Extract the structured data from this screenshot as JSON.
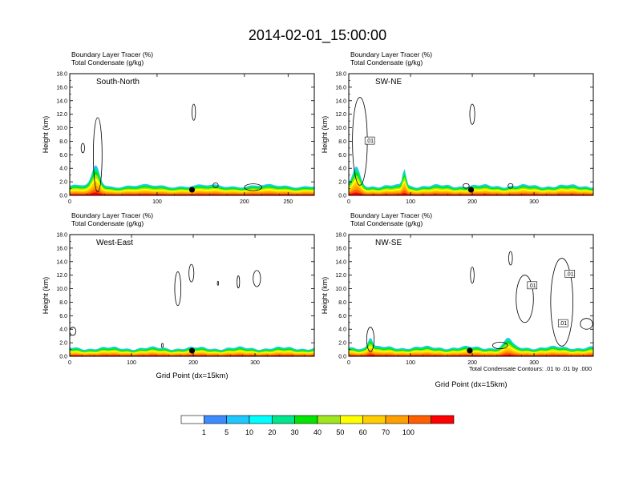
{
  "chart_data": {
    "type": "contour",
    "title": "2014-02-01_15:00:00",
    "panels": [
      {
        "label": "South-North",
        "var1": "Boundary Layer Tracer",
        "var1_units": "(%)",
        "var2": "Total Condensate",
        "var2_units": "(g/kg)",
        "ylabel": "Height (km)",
        "xlabel": "",
        "xlim": [
          0,
          280
        ],
        "ylim": [
          0,
          18
        ],
        "xticks": [
          0,
          100,
          200,
          250
        ],
        "yticks": [
          "0.0",
          "2.0",
          "4.0",
          "6.0",
          "8.0",
          "10.0",
          "12.0",
          "14.0",
          "16.0",
          "18.0"
        ],
        "site_x": 140,
        "contour_labels": [],
        "pbl_top_km": 1.4,
        "peaks": [
          {
            "x": 30,
            "h": 3.0,
            "w": 6
          }
        ],
        "clouds": [
          {
            "x": 15,
            "y": 7.0,
            "rx": 2,
            "ry": 0.7
          },
          {
            "x": 32,
            "y": 6.0,
            "rx": 5,
            "ry": 5.5
          },
          {
            "x": 142,
            "y": 12.3,
            "rx": 2,
            "ry": 1.2
          },
          {
            "x": 167,
            "y": 1.5,
            "rx": 3,
            "ry": 0.35
          },
          {
            "x": 210,
            "y": 1.2,
            "rx": 10,
            "ry": 0.5
          }
        ]
      },
      {
        "label": "SW-NE",
        "var1": "Boundary Layer Tracer",
        "var1_units": "(%)",
        "var2": "Total Condensate",
        "var2_units": "(g/kg)",
        "ylabel": "Height (km)",
        "xlabel": "",
        "xlim": [
          0,
          396
        ],
        "ylim": [
          0,
          18
        ],
        "xticks": [
          0,
          100,
          200,
          300
        ],
        "yticks": [
          "0.0",
          "2.0",
          "4.0",
          "6.0",
          "8.0",
          "10.0",
          "12.0",
          "14.0",
          "16.0",
          "18.0"
        ],
        "site_x": 198,
        "contour_labels": [
          {
            "x": 34,
            "y": 8.1,
            "text": ".01"
          }
        ],
        "pbl_top_km": 1.4,
        "peaks": [
          {
            "x": 12,
            "h": 2.8,
            "w": 8
          },
          {
            "x": 90,
            "h": 2.6,
            "w": 4
          }
        ],
        "clouds": [
          {
            "x": 18,
            "y": 8.0,
            "rx": 12,
            "ry": 6.5
          },
          {
            "x": 200,
            "y": 12.0,
            "rx": 4,
            "ry": 1.5
          },
          {
            "x": 190,
            "y": 1.4,
            "rx": 5,
            "ry": 0.35
          },
          {
            "x": 262,
            "y": 1.4,
            "rx": 4,
            "ry": 0.35
          }
        ]
      },
      {
        "label": "West-East",
        "var1": "Boundary Layer Tracer",
        "var1_units": "(%)",
        "var2": "Total Condensate",
        "var2_units": "(g/kg)",
        "ylabel": "Height (km)",
        "xlabel": "Grid Point (dx=15km)",
        "xlim": [
          0,
          396
        ],
        "ylim": [
          0,
          18
        ],
        "xticks": [
          0,
          100,
          200,
          300
        ],
        "yticks": [
          "0.0",
          "2.0",
          "4.0",
          "6.0",
          "8.0",
          "10.0",
          "12.0",
          "14.0",
          "16.0",
          "18.0"
        ],
        "site_x": 198,
        "contour_labels": [],
        "pbl_top_km": 1.2,
        "peaks": [],
        "clouds": [
          {
            "x": 5,
            "y": 3.7,
            "rx": 5,
            "ry": 0.6
          },
          {
            "x": 175,
            "y": 10.0,
            "rx": 5,
            "ry": 2.5
          },
          {
            "x": 197,
            "y": 12.3,
            "rx": 4,
            "ry": 1.3
          },
          {
            "x": 240,
            "y": 10.8,
            "rx": 1,
            "ry": 0.3
          },
          {
            "x": 273,
            "y": 11.0,
            "rx": 2,
            "ry": 0.9
          },
          {
            "x": 303,
            "y": 11.5,
            "rx": 6,
            "ry": 1.2
          },
          {
            "x": 150,
            "y": 1.6,
            "rx": 1.5,
            "ry": 0.3
          }
        ]
      },
      {
        "label": "NW-SE",
        "var1": "Boundary Layer Tracer",
        "var1_units": "(%)",
        "var2": "Total Condensate",
        "var2_units": "(g/kg)",
        "ylabel": "Height (km)",
        "xlabel": "Grid Point (dx=15km)",
        "xlim": [
          0,
          396
        ],
        "ylim": [
          0,
          18
        ],
        "xticks": [
          0,
          100,
          200,
          300
        ],
        "yticks": [
          "0.0",
          "2.0",
          "4.0",
          "6.0",
          "8.0",
          "10.0",
          "12.0",
          "14.0",
          "16.0",
          "18.0"
        ],
        "site_x": 196,
        "contour_labels": [
          {
            "x": 297,
            "y": 10.5,
            "text": ".01"
          },
          {
            "x": 358,
            "y": 12.2,
            "text": ".01"
          },
          {
            "x": 347,
            "y": 4.9,
            "text": ".01"
          }
        ],
        "pbl_top_km": 1.3,
        "peaks": [
          {
            "x": 35,
            "h": 1.6,
            "w": 5
          },
          {
            "x": 258,
            "h": 1.4,
            "w": 8
          }
        ],
        "clouds": [
          {
            "x": 35,
            "y": 2.5,
            "rx": 6,
            "ry": 1.8
          },
          {
            "x": 200,
            "y": 12.0,
            "rx": 3,
            "ry": 1.2
          },
          {
            "x": 262,
            "y": 14.5,
            "rx": 3,
            "ry": 1.0
          },
          {
            "x": 285,
            "y": 8.5,
            "rx": 14,
            "ry": 3.5
          },
          {
            "x": 345,
            "y": 8.0,
            "rx": 18,
            "ry": 6.5
          },
          {
            "x": 385,
            "y": 4.8,
            "rx": 10,
            "ry": 0.8
          },
          {
            "x": 245,
            "y": 1.6,
            "rx": 12,
            "ry": 0.5
          }
        ]
      }
    ],
    "contour_note": "Total Condensate Contours: .01 to .01 by .000",
    "colorbar": {
      "levels": [
        "1",
        "5",
        "10",
        "20",
        "30",
        "40",
        "50",
        "60",
        "70",
        "100"
      ],
      "colors": [
        "#ffffff",
        "#3c8cff",
        "#1ec8ff",
        "#00ffff",
        "#00e68c",
        "#00e600",
        "#a0e61e",
        "#ffff00",
        "#ffcd00",
        "#ffa000",
        "#ff5f00",
        "#ff0000"
      ]
    }
  }
}
